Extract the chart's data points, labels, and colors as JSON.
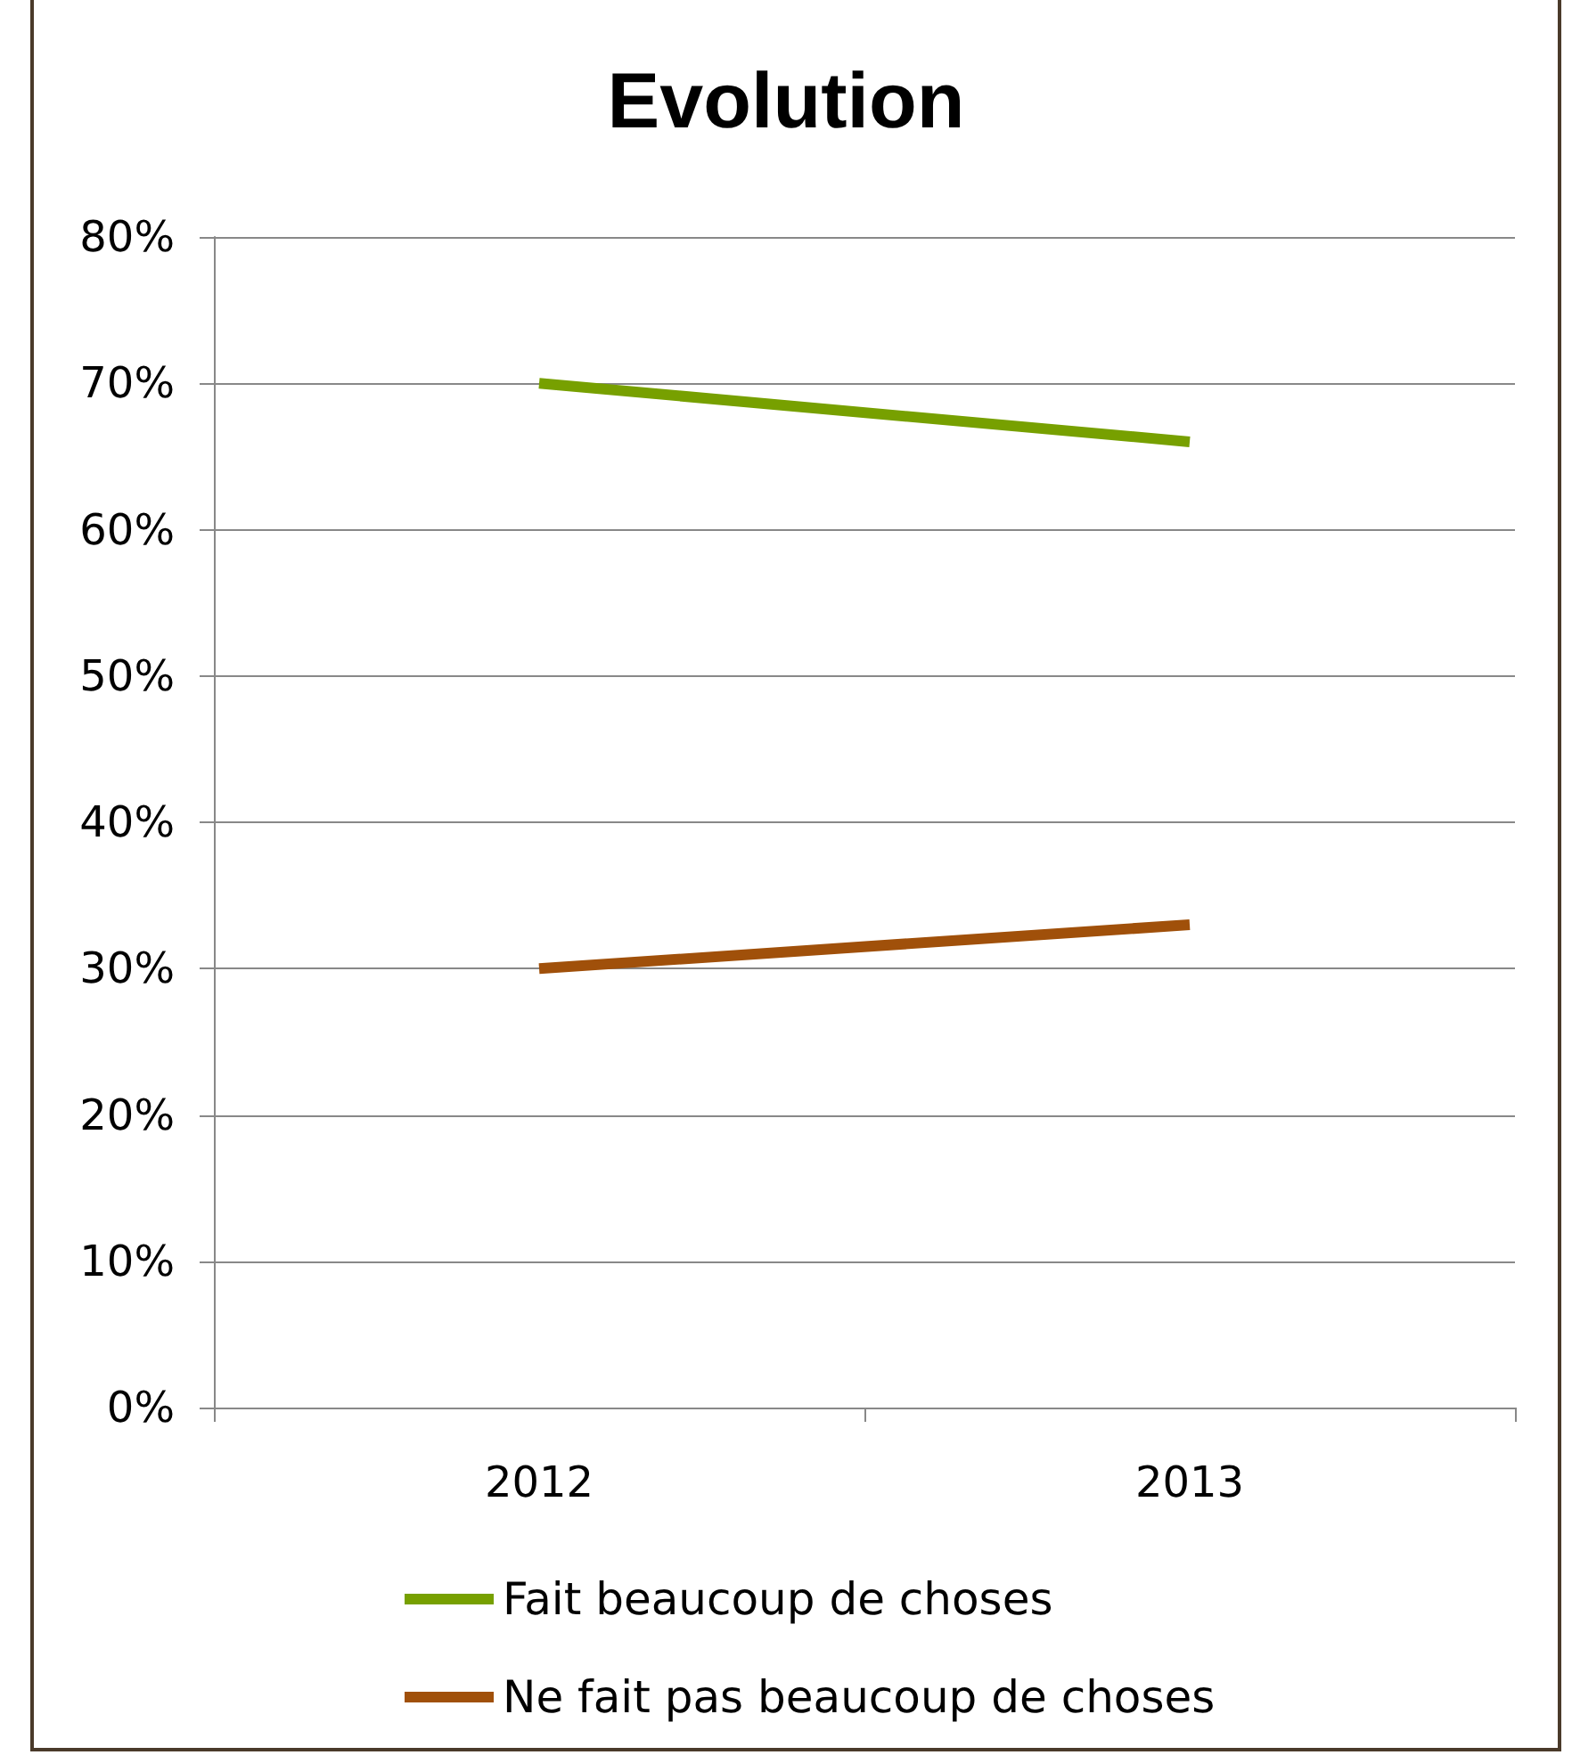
{
  "chart_data": {
    "type": "line",
    "title": "Evolution",
    "categories": [
      "2012",
      "2013"
    ],
    "series": [
      {
        "name": "Fait beaucoup de choses",
        "color": "#77a000",
        "values": [
          70,
          66
        ]
      },
      {
        "name": "Ne fait pas beaucoup de choses",
        "color": "#a0500a",
        "values": [
          30,
          33
        ]
      }
    ],
    "ylim": [
      0,
      80
    ],
    "yticks": [
      {
        "value": 0,
        "label": "0%"
      },
      {
        "value": 10,
        "label": "10%"
      },
      {
        "value": 20,
        "label": "20%"
      },
      {
        "value": 30,
        "label": "30%"
      },
      {
        "value": 40,
        "label": "40%"
      },
      {
        "value": 50,
        "label": "50%"
      },
      {
        "value": 60,
        "label": "60%"
      },
      {
        "value": 70,
        "label": "70%"
      },
      {
        "value": 80,
        "label": "80%"
      }
    ],
    "grid": "y",
    "legend": "bottom",
    "marker": "none",
    "line_style": "solid"
  }
}
